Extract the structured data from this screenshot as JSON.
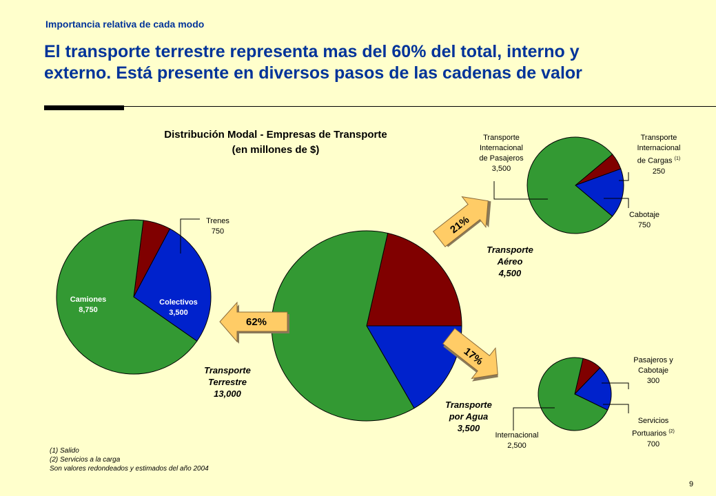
{
  "header": {
    "kicker": "Importancia relativa de cada modo",
    "headline_1": "El transporte terrestre representa mas del 60% del total, interno y",
    "headline_2": "externo. Está presente en diversos pasos de las cadenas de valor"
  },
  "chart_title": {
    "line1": "Distribución Modal - Empresas de Transporte",
    "line2": "(en millones de $)"
  },
  "arrows": {
    "terrestre_pct": "62%",
    "aereo_pct": "21%",
    "agua_pct": "17%"
  },
  "groups": {
    "terrestre": [
      "Transporte",
      "Terrestre",
      "13,000"
    ],
    "aereo": [
      "Transporte",
      "Aéreo",
      "4,500"
    ],
    "agua": [
      "Transporte",
      "por Agua",
      "3,500"
    ]
  },
  "labels": {
    "trenes": [
      "Trenes",
      "750"
    ],
    "camiones": [
      "Camiones",
      "8,750"
    ],
    "colectivos": [
      "Colectivos",
      "3,500"
    ],
    "aereo_pasajeros": [
      "Transporte",
      "Internacional",
      "de Pasajeros",
      "3,500"
    ],
    "aereo_cargas": [
      "Transporte",
      "Internacional",
      "de Cargas",
      "(1)",
      "250"
    ],
    "aereo_cabotaje": [
      "Cabotaje",
      "750"
    ],
    "agua_pasajeros": [
      "Pasajeros y",
      "Cabotaje",
      "300"
    ],
    "agua_portuarios": [
      "Servicios",
      "Portuarios",
      "(2)",
      "700"
    ],
    "agua_internacional": [
      "Internacional",
      "2,500"
    ]
  },
  "footnotes": [
    "(1) Salido",
    "(2) Servicios a la carga",
    "Son valores redondeados y estimados del año 2004"
  ],
  "page_number": "9",
  "colors": {
    "green": "#339933",
    "red": "#800000",
    "blue": "#0022CC",
    "arrow": "#FFCC66",
    "title": "#003399",
    "background": "#FFFFCC"
  },
  "chart_data": [
    {
      "type": "pie",
      "name": "main",
      "categories": [
        "Terrestre",
        "Aéreo",
        "Agua"
      ],
      "values": [
        13000,
        4500,
        3500
      ]
    },
    {
      "type": "pie",
      "name": "terrestre",
      "categories": [
        "Camiones",
        "Trenes",
        "Colectivos"
      ],
      "values": [
        8750,
        750,
        3500
      ]
    },
    {
      "type": "pie",
      "name": "aereo",
      "categories": [
        "Transporte Internacional de Pasajeros",
        "Transporte Internacional de Cargas",
        "Cabotaje"
      ],
      "values": [
        3500,
        250,
        750
      ]
    },
    {
      "type": "pie",
      "name": "agua",
      "categories": [
        "Internacional",
        "Pasajeros y Cabotaje",
        "Servicios Portuarios"
      ],
      "values": [
        2500,
        300,
        700
      ]
    }
  ]
}
